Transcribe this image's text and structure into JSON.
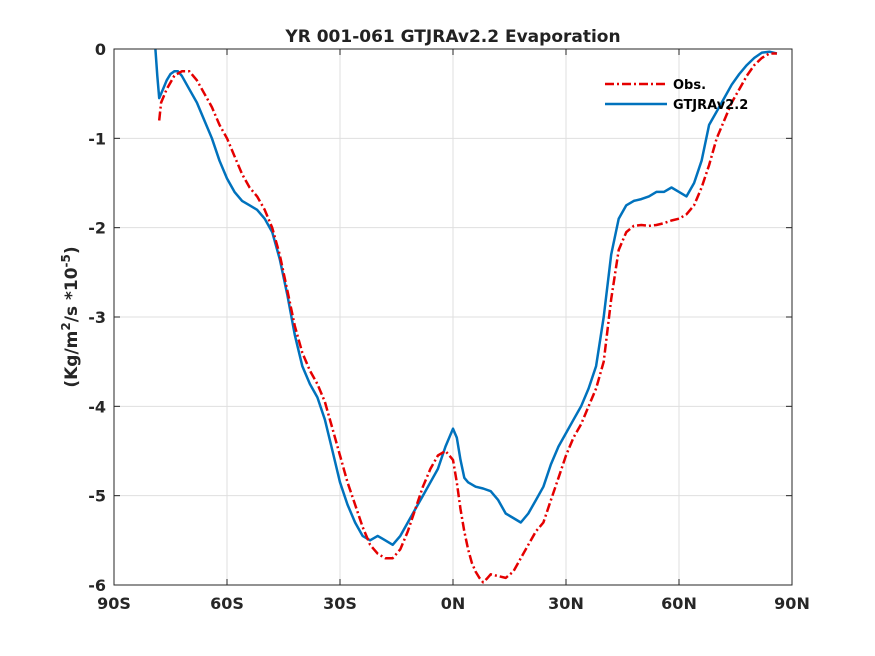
{
  "chart_data": {
    "type": "line",
    "title": "YR 001-061 GTJRAv2.2 Evaporation",
    "ylabel_main": "(Kg/m",
    "ylabel_sup1": "2",
    "ylabel_mid": "/s *10",
    "ylabel_sup2": "-5",
    "ylabel_end": ")",
    "xlim": [
      -90,
      90
    ],
    "ylim": [
      -6,
      0
    ],
    "x_ticks": [
      -90,
      -60,
      -30,
      0,
      30,
      60,
      90
    ],
    "x_tick_labels": [
      "90S",
      "60S",
      "30S",
      "0N",
      "30N",
      "60N",
      "90N"
    ],
    "y_ticks": [
      -6,
      -5,
      -4,
      -3,
      -2,
      -1,
      0
    ],
    "y_tick_labels": [
      "-6",
      "-5",
      "-4",
      "-3",
      "-2",
      "-1",
      "0"
    ],
    "grid": true,
    "legend_position": "top-right",
    "series": [
      {
        "name": "Obs.",
        "color": "#e50000",
        "style": "dash-dot",
        "x": [
          -78,
          -77.5,
          -76,
          -74,
          -72,
          -70,
          -68,
          -66,
          -64,
          -62,
          -60,
          -58,
          -56,
          -54,
          -52,
          -50,
          -48,
          -46,
          -44,
          -42,
          -40,
          -38,
          -36,
          -34,
          -32,
          -30,
          -28,
          -26,
          -24,
          -22,
          -20,
          -18,
          -16,
          -14,
          -12,
          -10,
          -8,
          -6,
          -4,
          -2,
          0,
          1,
          2,
          3,
          4,
          5,
          6,
          7,
          8,
          9,
          10,
          12,
          14,
          16,
          18,
          20,
          22,
          24,
          26,
          28,
          30,
          32,
          34,
          36,
          38,
          40,
          42,
          44,
          46,
          48,
          50,
          52,
          54,
          56,
          58,
          60,
          62,
          64,
          66,
          68,
          70,
          72,
          74,
          76,
          78,
          80,
          82,
          84,
          86
        ],
        "y": [
          -0.8,
          -0.6,
          -0.45,
          -0.3,
          -0.25,
          -0.25,
          -0.35,
          -0.5,
          -0.65,
          -0.85,
          -1.0,
          -1.2,
          -1.4,
          -1.55,
          -1.65,
          -1.8,
          -2.0,
          -2.3,
          -2.7,
          -3.1,
          -3.4,
          -3.6,
          -3.75,
          -3.95,
          -4.25,
          -4.55,
          -4.85,
          -5.1,
          -5.35,
          -5.55,
          -5.65,
          -5.7,
          -5.7,
          -5.6,
          -5.4,
          -5.15,
          -4.9,
          -4.7,
          -4.55,
          -4.5,
          -4.6,
          -4.85,
          -5.15,
          -5.4,
          -5.6,
          -5.75,
          -5.85,
          -5.92,
          -5.97,
          -5.93,
          -5.88,
          -5.9,
          -5.92,
          -5.85,
          -5.7,
          -5.55,
          -5.4,
          -5.3,
          -5.05,
          -4.8,
          -4.55,
          -4.35,
          -4.2,
          -4.0,
          -3.8,
          -3.5,
          -2.8,
          -2.25,
          -2.05,
          -1.98,
          -1.97,
          -1.98,
          -1.97,
          -1.95,
          -1.92,
          -1.9,
          -1.85,
          -1.75,
          -1.55,
          -1.3,
          -1.0,
          -0.8,
          -0.6,
          -0.45,
          -0.3,
          -0.18,
          -0.1,
          -0.05,
          -0.05
        ]
      },
      {
        "name": "GTJRAv2.2",
        "color": "#0072bd",
        "style": "solid",
        "x": [
          -79,
          -78.5,
          -78,
          -77,
          -76,
          -75,
          -74,
          -73,
          -72,
          -70,
          -68,
          -66,
          -64,
          -62,
          -60,
          -58,
          -56,
          -54,
          -52,
          -50,
          -48,
          -46,
          -44,
          -42,
          -40,
          -38,
          -36,
          -34,
          -32,
          -30,
          -28,
          -26,
          -24,
          -22,
          -20,
          -18,
          -16,
          -14,
          -12,
          -10,
          -8,
          -6,
          -4,
          -2,
          0,
          1,
          2,
          3,
          4,
          6,
          8,
          10,
          12,
          14,
          16,
          18,
          20,
          22,
          24,
          26,
          28,
          30,
          32,
          34,
          36,
          38,
          40,
          42,
          44,
          46,
          48,
          50,
          52,
          54,
          56,
          58,
          60,
          62,
          64,
          66,
          68,
          70,
          72,
          74,
          76,
          78,
          80,
          82,
          84,
          86
        ],
        "y": [
          0.0,
          -0.3,
          -0.55,
          -0.45,
          -0.35,
          -0.28,
          -0.25,
          -0.25,
          -0.3,
          -0.45,
          -0.6,
          -0.8,
          -1.0,
          -1.25,
          -1.45,
          -1.6,
          -1.7,
          -1.75,
          -1.8,
          -1.9,
          -2.05,
          -2.35,
          -2.75,
          -3.2,
          -3.55,
          -3.75,
          -3.9,
          -4.15,
          -4.5,
          -4.85,
          -5.1,
          -5.3,
          -5.45,
          -5.5,
          -5.45,
          -5.5,
          -5.55,
          -5.45,
          -5.3,
          -5.15,
          -5.0,
          -4.85,
          -4.7,
          -4.45,
          -4.25,
          -4.35,
          -4.6,
          -4.8,
          -4.85,
          -4.9,
          -4.92,
          -4.95,
          -5.05,
          -5.2,
          -5.25,
          -5.3,
          -5.2,
          -5.05,
          -4.9,
          -4.65,
          -4.45,
          -4.3,
          -4.15,
          -4.0,
          -3.8,
          -3.55,
          -3.0,
          -2.3,
          -1.9,
          -1.75,
          -1.7,
          -1.68,
          -1.65,
          -1.6,
          -1.6,
          -1.55,
          -1.6,
          -1.65,
          -1.5,
          -1.25,
          -0.85,
          -0.7,
          -0.55,
          -0.4,
          -0.28,
          -0.18,
          -0.1,
          -0.04,
          -0.03,
          -0.05
        ]
      }
    ]
  }
}
